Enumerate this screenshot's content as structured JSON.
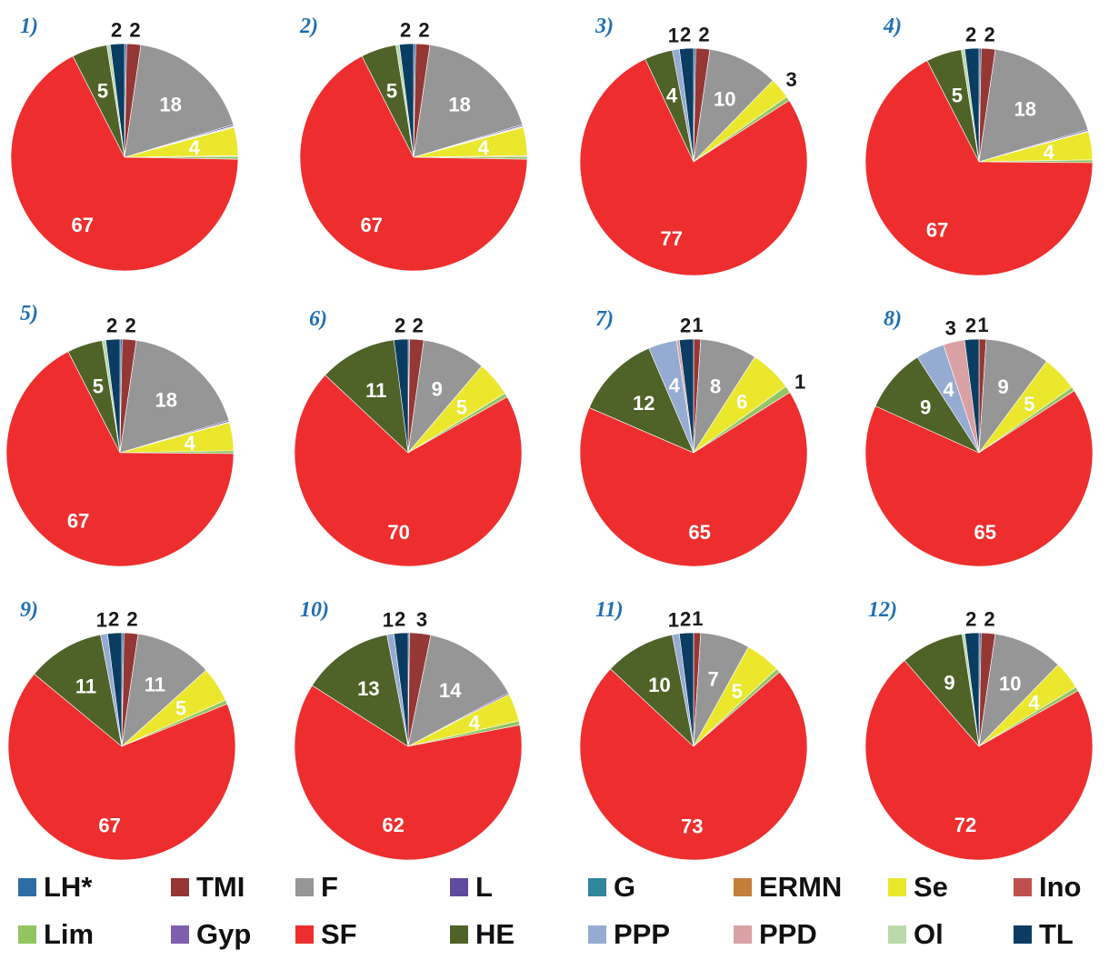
{
  "categories": [
    "LH*",
    "TMI",
    "F",
    "L",
    "G",
    "ERMN",
    "Se",
    "Ino",
    "Lim",
    "Gyp",
    "SF",
    "HE",
    "PPP",
    "PPD",
    "Ol",
    "TL"
  ],
  "colors": {
    "LH*": "#2e6da4",
    "TMI": "#953735",
    "F": "#969696",
    "L": "#604a9b",
    "G": "#31859c",
    "ERMN": "#c57d3a",
    "Se": "#ebe72c",
    "Ino": "#c0504d",
    "Lim": "#92c562",
    "Gyp": "#7f5fb0",
    "SF": "#ee2e2e",
    "HE": "#4f6228",
    "PPP": "#95abd1",
    "PPD": "#d9a1a4",
    "Ol": "#b9d9a8",
    "TL": "#0b3d62"
  },
  "chart_data": [
    {
      "type": "pie",
      "title": "1)",
      "slices": [
        {
          "category": "LH*",
          "value": 0.3
        },
        {
          "category": "TMI",
          "value": 2,
          "label": "2"
        },
        {
          "category": "F",
          "value": 18,
          "label": "18"
        },
        {
          "category": "L",
          "value": 0.2
        },
        {
          "category": "G",
          "value": 0.1
        },
        {
          "category": "ERMN",
          "value": 0.1
        },
        {
          "category": "Se",
          "value": 4,
          "label": "4"
        },
        {
          "category": "Ino",
          "value": 0.1
        },
        {
          "category": "Lim",
          "value": 0.4
        },
        {
          "category": "SF",
          "value": 67,
          "label": "67"
        },
        {
          "category": "HE",
          "value": 5,
          "label": "5"
        },
        {
          "category": "Ol",
          "value": 0.5
        },
        {
          "category": "TL",
          "value": 2,
          "label": "2"
        }
      ]
    },
    {
      "type": "pie",
      "title": "2)",
      "slices": [
        {
          "category": "LH*",
          "value": 0.3
        },
        {
          "category": "TMI",
          "value": 2,
          "label": "2"
        },
        {
          "category": "F",
          "value": 18,
          "label": "18"
        },
        {
          "category": "L",
          "value": 0.2
        },
        {
          "category": "G",
          "value": 0.1
        },
        {
          "category": "ERMN",
          "value": 0.1
        },
        {
          "category": "Se",
          "value": 4,
          "label": "4"
        },
        {
          "category": "Ino",
          "value": 0.1
        },
        {
          "category": "Lim",
          "value": 0.4
        },
        {
          "category": "SF",
          "value": 67,
          "label": "67"
        },
        {
          "category": "HE",
          "value": 5,
          "label": "5"
        },
        {
          "category": "Ol",
          "value": 0.5
        },
        {
          "category": "TL",
          "value": 2,
          "label": "2"
        }
      ]
    },
    {
      "type": "pie",
      "title": "3)",
      "slices": [
        {
          "category": "LH*",
          "value": 0.3
        },
        {
          "category": "TMI",
          "value": 2,
          "label": "2"
        },
        {
          "category": "F",
          "value": 10,
          "label": "10"
        },
        {
          "category": "Se",
          "value": 3,
          "label": "3"
        },
        {
          "category": "Lim",
          "value": 0.6
        },
        {
          "category": "SF",
          "value": 77,
          "label": "77"
        },
        {
          "category": "HE",
          "value": 4,
          "label": "4"
        },
        {
          "category": "PPP",
          "value": 1,
          "label": "1"
        },
        {
          "category": "TL",
          "value": 2,
          "label": "2"
        }
      ]
    },
    {
      "type": "pie",
      "title": "4)",
      "slices": [
        {
          "category": "LH*",
          "value": 0.3
        },
        {
          "category": "TMI",
          "value": 2,
          "label": "2"
        },
        {
          "category": "F",
          "value": 18,
          "label": "18"
        },
        {
          "category": "L",
          "value": 0.2
        },
        {
          "category": "G",
          "value": 0.1
        },
        {
          "category": "Se",
          "value": 4,
          "label": "4"
        },
        {
          "category": "Lim",
          "value": 0.4
        },
        {
          "category": "SF",
          "value": 67,
          "label": "67"
        },
        {
          "category": "HE",
          "value": 5,
          "label": "5"
        },
        {
          "category": "Ol",
          "value": 0.5
        },
        {
          "category": "TL",
          "value": 2,
          "label": "2"
        }
      ]
    },
    {
      "type": "pie",
      "title": "5)",
      "slices": [
        {
          "category": "LH*",
          "value": 0.3
        },
        {
          "category": "TMI",
          "value": 2,
          "label": "2"
        },
        {
          "category": "F",
          "value": 18,
          "label": "18"
        },
        {
          "category": "L",
          "value": 0.2
        },
        {
          "category": "G",
          "value": 0.1
        },
        {
          "category": "Se",
          "value": 4,
          "label": "4"
        },
        {
          "category": "Lim",
          "value": 0.4
        },
        {
          "category": "SF",
          "value": 67,
          "label": "67"
        },
        {
          "category": "HE",
          "value": 5,
          "label": "5"
        },
        {
          "category": "Ol",
          "value": 0.5
        },
        {
          "category": "TL",
          "value": 2,
          "label": "2"
        }
      ]
    },
    {
      "type": "pie",
      "title": "6)",
      "slices": [
        {
          "category": "LH*",
          "value": 0.2
        },
        {
          "category": "TMI",
          "value": 2,
          "label": "2"
        },
        {
          "category": "F",
          "value": 9,
          "label": "9"
        },
        {
          "category": "Se",
          "value": 5,
          "label": "5"
        },
        {
          "category": "Lim",
          "value": 0.6
        },
        {
          "category": "SF",
          "value": 70,
          "label": "70"
        },
        {
          "category": "HE",
          "value": 11,
          "label": "11"
        },
        {
          "category": "TL",
          "value": 2,
          "label": "2"
        }
      ]
    },
    {
      "type": "pie",
      "title": "7)",
      "slices": [
        {
          "category": "TMI",
          "value": 1,
          "label": "1"
        },
        {
          "category": "F",
          "value": 8,
          "label": "8"
        },
        {
          "category": "Se",
          "value": 6,
          "label": "6"
        },
        {
          "category": "Lim",
          "value": 1,
          "label": "1"
        },
        {
          "category": "SF",
          "value": 65,
          "label": "65"
        },
        {
          "category": "HE",
          "value": 12,
          "label": "12"
        },
        {
          "category": "PPP",
          "value": 4,
          "label": "4"
        },
        {
          "category": "PPD",
          "value": 0.4
        },
        {
          "category": "TL",
          "value": 2,
          "label": "2"
        }
      ]
    },
    {
      "type": "pie",
      "title": "8)",
      "slices": [
        {
          "category": "TMI",
          "value": 1,
          "label": "1"
        },
        {
          "category": "F",
          "value": 9,
          "label": "9"
        },
        {
          "category": "Se",
          "value": 5,
          "label": "5"
        },
        {
          "category": "Lim",
          "value": 0.6
        },
        {
          "category": "SF",
          "value": 65,
          "label": "65"
        },
        {
          "category": "HE",
          "value": 9,
          "label": "9"
        },
        {
          "category": "PPP",
          "value": 4,
          "label": "4"
        },
        {
          "category": "PPD",
          "value": 3,
          "label": "3"
        },
        {
          "category": "TL",
          "value": 2,
          "label": "2"
        }
      ]
    },
    {
      "type": "pie",
      "title": "9)",
      "slices": [
        {
          "category": "LH*",
          "value": 0.3
        },
        {
          "category": "TMI",
          "value": 2,
          "label": "2"
        },
        {
          "category": "F",
          "value": 11,
          "label": "11"
        },
        {
          "category": "Se",
          "value": 5,
          "label": "5"
        },
        {
          "category": "Lim",
          "value": 0.6
        },
        {
          "category": "SF",
          "value": 67,
          "label": "67"
        },
        {
          "category": "HE",
          "value": 11,
          "label": "11"
        },
        {
          "category": "PPP",
          "value": 1,
          "label": "1"
        },
        {
          "category": "TL",
          "value": 2,
          "label": "2"
        }
      ]
    },
    {
      "type": "pie",
      "title": "10)",
      "slices": [
        {
          "category": "LH*",
          "value": 0.2
        },
        {
          "category": "TMI",
          "value": 3,
          "label": "3"
        },
        {
          "category": "F",
          "value": 14,
          "label": "14"
        },
        {
          "category": "L",
          "value": 0.2
        },
        {
          "category": "Se",
          "value": 4,
          "label": "4"
        },
        {
          "category": "Lim",
          "value": 0.6
        },
        {
          "category": "SF",
          "value": 62,
          "label": "62"
        },
        {
          "category": "HE",
          "value": 13,
          "label": "13"
        },
        {
          "category": "PPP",
          "value": 1,
          "label": "1"
        },
        {
          "category": "TL",
          "value": 2,
          "label": "2"
        }
      ]
    },
    {
      "type": "pie",
      "title": "11)",
      "slices": [
        {
          "category": "TMI",
          "value": 1,
          "label": "1"
        },
        {
          "category": "F",
          "value": 7,
          "label": "7"
        },
        {
          "category": "Se",
          "value": 5,
          "label": "5"
        },
        {
          "category": "Lim",
          "value": 0.6
        },
        {
          "category": "SF",
          "value": 73,
          "label": "73"
        },
        {
          "category": "HE",
          "value": 10,
          "label": "10"
        },
        {
          "category": "PPP",
          "value": 1,
          "label": "1"
        },
        {
          "category": "TL",
          "value": 2,
          "label": "2"
        }
      ]
    },
    {
      "type": "pie",
      "title": "12)",
      "slices": [
        {
          "category": "LH*",
          "value": 0.3
        },
        {
          "category": "TMI",
          "value": 2,
          "label": "2"
        },
        {
          "category": "F",
          "value": 10,
          "label": "10"
        },
        {
          "category": "Se",
          "value": 4,
          "label": "4"
        },
        {
          "category": "Lim",
          "value": 0.6
        },
        {
          "category": "SF",
          "value": 72,
          "label": "72"
        },
        {
          "category": "HE",
          "value": 9,
          "label": "9"
        },
        {
          "category": "Ol",
          "value": 0.4
        },
        {
          "category": "TL",
          "value": 2,
          "label": "2"
        }
      ]
    }
  ]
}
